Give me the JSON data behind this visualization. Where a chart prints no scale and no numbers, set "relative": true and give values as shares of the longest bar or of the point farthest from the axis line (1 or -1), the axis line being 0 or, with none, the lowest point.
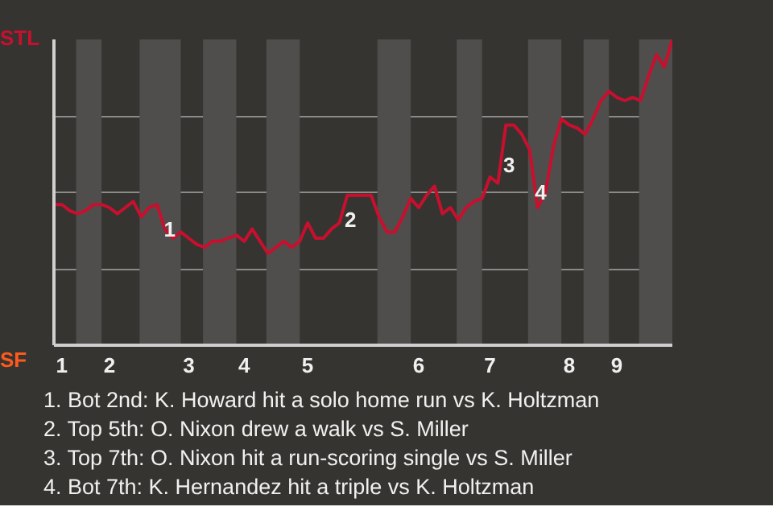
{
  "chart_data": {
    "type": "line",
    "relative": true,
    "grid": "y",
    "marker": "none",
    "line_style": "solid",
    "categories": [
      null,
      "1",
      null,
      null,
      null,
      null,
      null,
      "2",
      null,
      null,
      null,
      null,
      null,
      null,
      null,
      null,
      null,
      "3",
      null,
      null,
      null,
      null,
      null,
      null,
      "4",
      null,
      null,
      null,
      null,
      null,
      null,
      null,
      "5",
      null,
      null,
      null,
      null,
      null,
      null,
      null,
      null,
      null,
      null,
      null,
      null,
      null,
      "6",
      null,
      null,
      null,
      null,
      null,
      null,
      null,
      null,
      "7",
      null,
      null,
      null,
      null,
      null,
      null,
      null,
      null,
      null,
      "8",
      null,
      null,
      null,
      null,
      null,
      "9",
      null,
      null,
      null,
      null,
      null,
      null,
      null
    ],
    "series": [
      {
        "color": "#c8102e",
        "values": [
          0.46,
          0.46,
          0.44,
          0.43,
          0.44,
          0.46,
          0.46,
          0.45,
          0.43,
          0.45,
          0.47,
          0.42,
          0.45,
          0.46,
          0.38,
          0.35,
          0.37,
          0.35,
          0.33,
          0.32,
          0.34,
          0.34,
          0.35,
          0.36,
          0.34,
          0.38,
          0.34,
          0.3,
          0.32,
          0.34,
          0.32,
          0.34,
          0.4,
          0.35,
          0.35,
          0.38,
          0.4,
          0.49,
          0.49,
          0.49,
          0.49,
          0.42,
          0.37,
          0.37,
          0.42,
          0.48,
          0.45,
          0.49,
          0.52,
          0.43,
          0.45,
          0.41,
          0.45,
          0.47,
          0.48,
          0.55,
          0.53,
          0.72,
          0.72,
          0.69,
          0.64,
          0.45,
          0.5,
          0.65,
          0.74,
          0.72,
          0.71,
          0.69,
          0.74,
          0.8,
          0.83,
          0.81,
          0.8,
          0.81,
          0.8,
          0.88,
          0.95,
          0.91,
          1
        ]
      }
    ],
    "annotations": [
      "STL",
      "SF",
      "1",
      "2",
      "3",
      "4",
      "1. Bot 2nd: K. Howard hit a solo home run vs K. Holtzman",
      "2. Top 5th: O. Nixon drew a walk vs S. Miller",
      "3. Top 7th: O. Nixon hit a run-scoring single vs S. Miller",
      "4. Bot 7th: K. Hernandez hit a triple vs K. Holtzman"
    ]
  }
}
